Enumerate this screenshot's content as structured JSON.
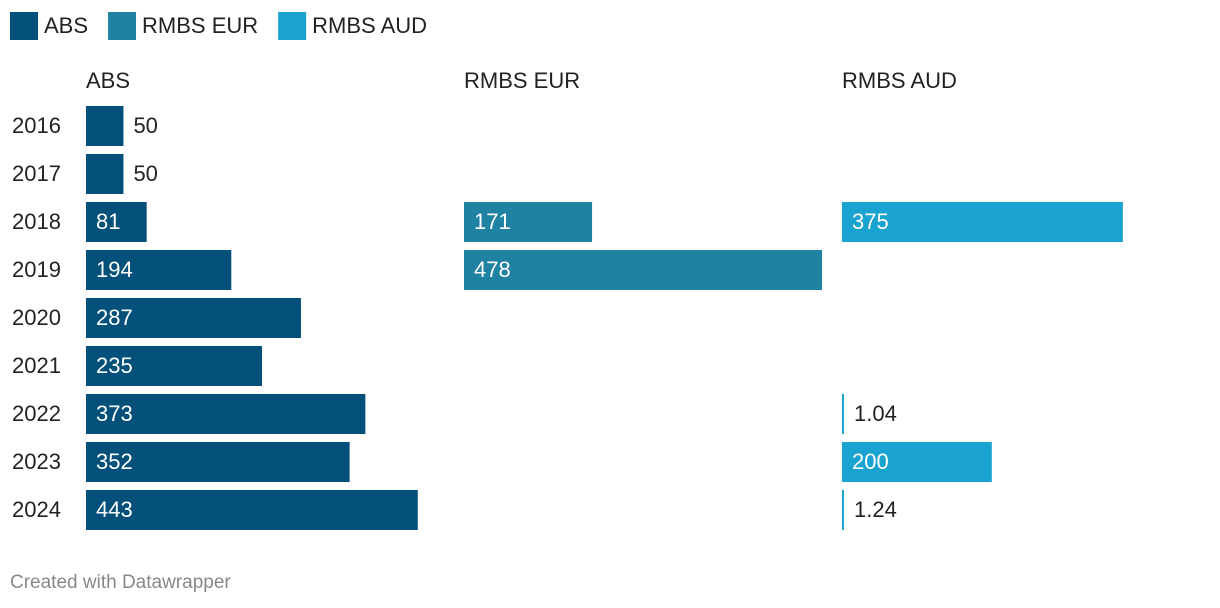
{
  "chart_data": {
    "type": "bar",
    "layout": "split",
    "categories": [
      "2016",
      "2017",
      "2018",
      "2019",
      "2020",
      "2021",
      "2022",
      "2023",
      "2024"
    ],
    "series": [
      {
        "name": "ABS",
        "color": "#03507a",
        "values": [
          50,
          50,
          81,
          194,
          287,
          235,
          373,
          352,
          443
        ]
      },
      {
        "name": "RMBS EUR",
        "color": "#1f82a2",
        "values": [
          null,
          null,
          171,
          478,
          null,
          null,
          null,
          null,
          null
        ]
      },
      {
        "name": "RMBS AUD",
        "color": "#1aa3d0",
        "values": [
          null,
          null,
          375,
          null,
          null,
          null,
          1.04,
          200,
          1.24
        ]
      }
    ],
    "xlim": [
      0,
      478
    ],
    "legend": "top-left",
    "credit": "Created with Datawrapper"
  }
}
